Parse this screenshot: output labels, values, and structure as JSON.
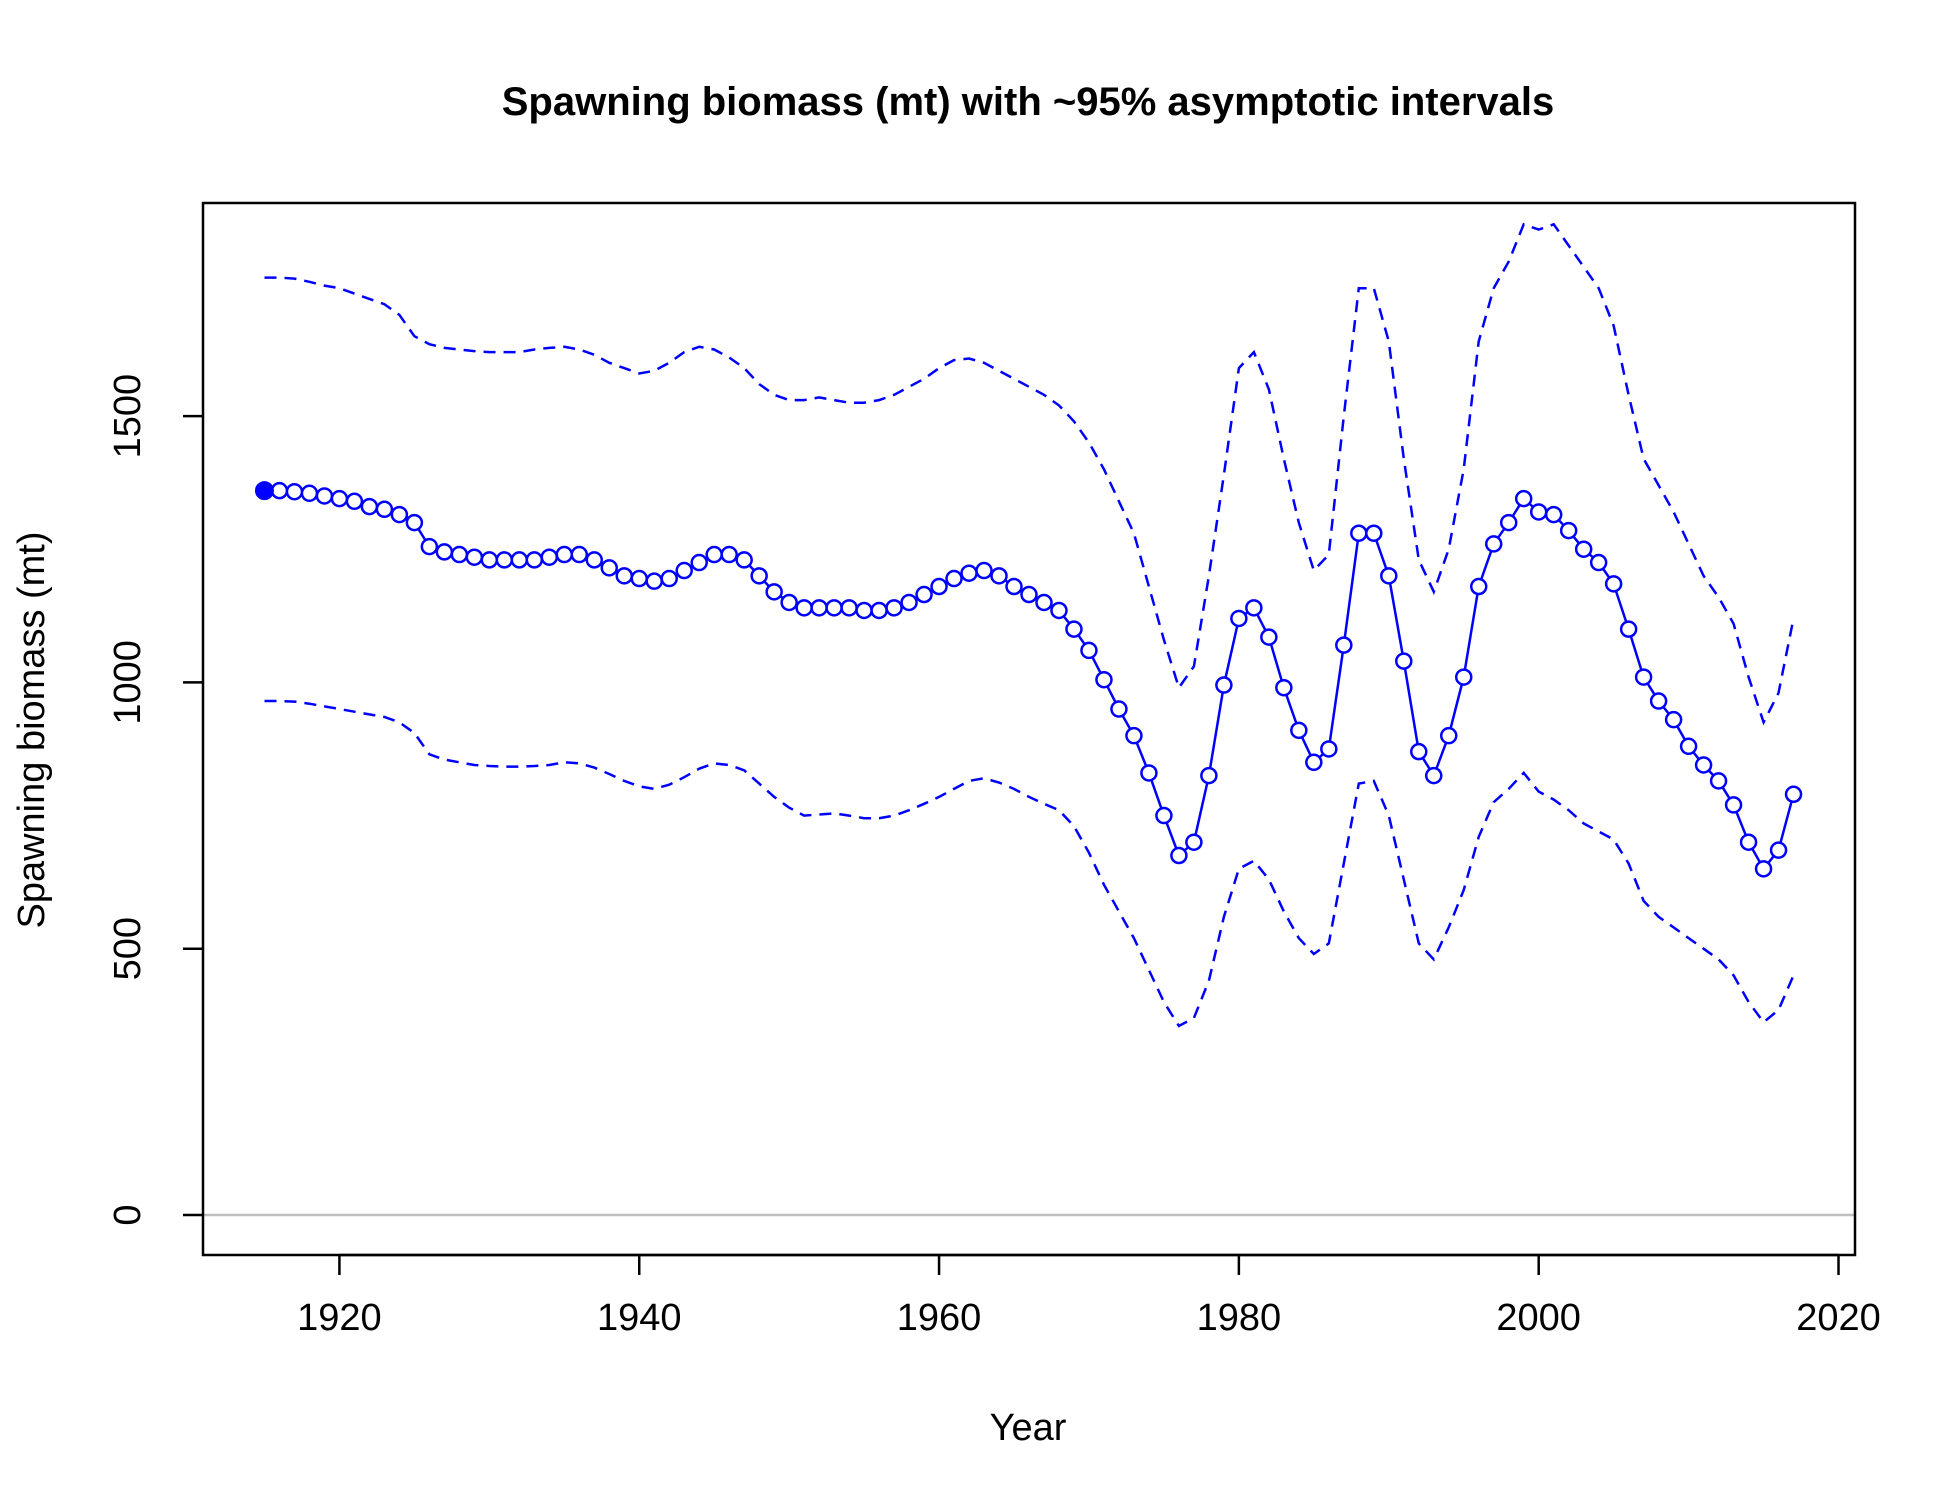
{
  "chart_data": {
    "type": "line",
    "title": "Spawning biomass (mt) with ~95% asymptotic intervals",
    "xlabel": "Year",
    "ylabel": "Spawning biomass (mt)",
    "xlim": [
      1910.9,
      2021.1
    ],
    "ylim": [
      -75,
      1900
    ],
    "x_ticks": [
      1920,
      1940,
      1960,
      1980,
      2000,
      2020
    ],
    "y_ticks": [
      0,
      500,
      1000,
      1500
    ],
    "reference_line": {
      "y": 0,
      "color": "#BEBEBE"
    },
    "colors": {
      "series": "#0000FF",
      "axis": "#000000"
    },
    "grid": false,
    "legend": "none",
    "initial_point": {
      "x": 1915,
      "y": 1360
    },
    "x": [
      1916,
      1917,
      1918,
      1919,
      1920,
      1921,
      1922,
      1923,
      1924,
      1925,
      1926,
      1927,
      1928,
      1929,
      1930,
      1931,
      1932,
      1933,
      1934,
      1935,
      1936,
      1937,
      1938,
      1939,
      1940,
      1941,
      1942,
      1943,
      1944,
      1945,
      1946,
      1947,
      1948,
      1949,
      1950,
      1951,
      1952,
      1953,
      1954,
      1955,
      1956,
      1957,
      1958,
      1959,
      1960,
      1961,
      1962,
      1963,
      1964,
      1965,
      1966,
      1967,
      1968,
      1969,
      1970,
      1971,
      1972,
      1973,
      1974,
      1975,
      1976,
      1977,
      1978,
      1979,
      1980,
      1981,
      1982,
      1983,
      1984,
      1985,
      1986,
      1987,
      1988,
      1989,
      1990,
      1991,
      1992,
      1993,
      1994,
      1995,
      1996,
      1997,
      1998,
      1999,
      2000,
      2001,
      2002,
      2003,
      2004,
      2005,
      2006,
      2007,
      2008,
      2009,
      2010,
      2011,
      2012,
      2013,
      2014,
      2015,
      2016,
      2017
    ],
    "series": [
      {
        "values": [
          1360,
          1358,
          1355,
          1350,
          1345,
          1340,
          1330,
          1325,
          1315,
          1300,
          1255,
          1245,
          1240,
          1235,
          1230,
          1230,
          1230,
          1230,
          1235,
          1240,
          1240,
          1230,
          1215,
          1200,
          1195,
          1190,
          1195,
          1210,
          1225,
          1240,
          1240,
          1230,
          1200,
          1170,
          1150,
          1140,
          1140,
          1140,
          1140,
          1135,
          1135,
          1140,
          1150,
          1165,
          1180,
          1195,
          1205,
          1210,
          1200,
          1180,
          1165,
          1150,
          1135,
          1100,
          1060,
          1005,
          950,
          900,
          830,
          750,
          675,
          700,
          825,
          995,
          1120,
          1140,
          1085,
          990,
          910,
          850,
          875,
          1070,
          1280,
          1280,
          1200,
          1040,
          870,
          825,
          900,
          1010,
          1180,
          1260,
          1300,
          1345,
          1320,
          1315,
          1285,
          1250,
          1225,
          1185,
          1100,
          1010,
          965,
          930,
          880,
          845,
          815,
          770,
          700,
          650,
          685,
          790
        ]
      },
      {
        "values": [
          1760,
          1758,
          1752,
          1745,
          1740,
          1730,
          1720,
          1710,
          1690,
          1650,
          1635,
          1628,
          1625,
          1622,
          1620,
          1620,
          1620,
          1625,
          1628,
          1630,
          1625,
          1615,
          1600,
          1590,
          1580,
          1585,
          1600,
          1620,
          1630,
          1625,
          1610,
          1590,
          1560,
          1540,
          1530,
          1530,
          1535,
          1530,
          1525,
          1525,
          1530,
          1540,
          1555,
          1570,
          1590,
          1605,
          1608,
          1600,
          1585,
          1570,
          1555,
          1540,
          1520,
          1490,
          1450,
          1400,
          1340,
          1280,
          1180,
          1080,
          990,
          1030,
          1200,
          1390,
          1590,
          1620,
          1550,
          1420,
          1300,
          1210,
          1240,
          1500,
          1740,
          1740,
          1640,
          1420,
          1230,
          1170,
          1250,
          1400,
          1640,
          1740,
          1790,
          1860,
          1850,
          1860,
          1820,
          1780,
          1740,
          1670,
          1540,
          1420,
          1370,
          1320,
          1260,
          1200,
          1160,
          1110,
          1010,
          925,
          980,
          1120
        ]
      },
      {
        "values": [
          965,
          964,
          960,
          955,
          950,
          945,
          940,
          935,
          925,
          905,
          865,
          855,
          850,
          845,
          843,
          842,
          842,
          843,
          845,
          850,
          848,
          840,
          828,
          815,
          805,
          800,
          808,
          822,
          838,
          848,
          845,
          835,
          810,
          785,
          765,
          750,
          752,
          754,
          750,
          745,
          745,
          750,
          760,
          772,
          785,
          800,
          815,
          820,
          812,
          800,
          785,
          772,
          760,
          730,
          680,
          620,
          570,
          520,
          460,
          400,
          355,
          370,
          440,
          560,
          650,
          665,
          630,
          570,
          520,
          490,
          510,
          660,
          810,
          815,
          750,
          630,
          510,
          480,
          540,
          610,
          710,
          775,
          800,
          830,
          795,
          780,
          760,
          735,
          720,
          705,
          660,
          590,
          560,
          540,
          520,
          500,
          480,
          450,
          400,
          362,
          385,
          450
        ]
      }
    ]
  }
}
